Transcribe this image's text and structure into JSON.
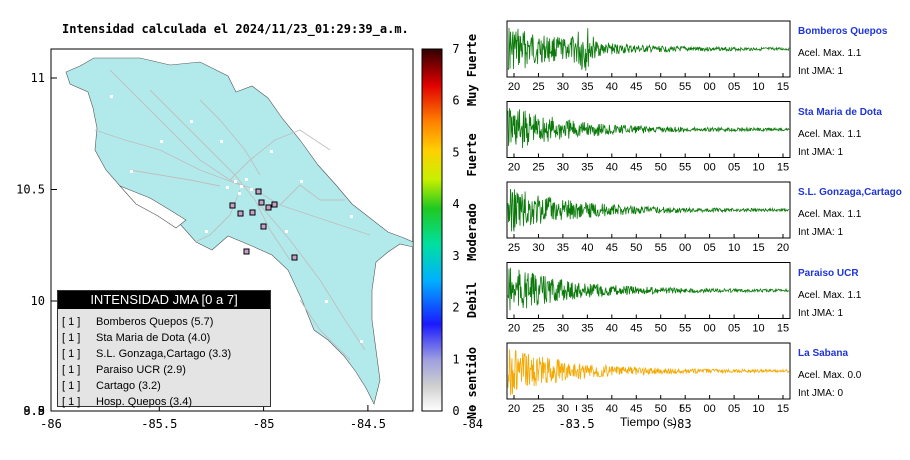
{
  "map": {
    "title": "Intensidad calculada el 2024/11/23_01:29:39_a.m.",
    "x_ticks": [
      "-86",
      "-85.5",
      "-85",
      "-84.5",
      "-84",
      "-83.5",
      "-83"
    ],
    "y_ticks": [
      "11",
      "10.5",
      "10",
      "9.5",
      "9",
      "8.5",
      "8"
    ],
    "colors": {
      "land": "#b2eaec",
      "sea": "#ffffff",
      "roads": "#bfbfbf",
      "stations": "#ffffff"
    }
  },
  "scale": {
    "ticks": [
      "0",
      "1",
      "2",
      "3",
      "4",
      "5",
      "6",
      "7"
    ],
    "labels": [
      "No sentido",
      "Debil",
      "Moderado",
      "Fuerte",
      "Muy Fuerte"
    ]
  },
  "legend": {
    "title": "INTENSIDAD JMA [0 a 7]",
    "items": [
      {
        "bracket": "[ 1 ]",
        "label": "Bomberos Quepos (5.7)"
      },
      {
        "bracket": "[ 1 ]",
        "label": "Sta Maria de Dota (4.0)"
      },
      {
        "bracket": "[ 1 ]",
        "label": "S.L. Gonzaga,Cartago (3.3)"
      },
      {
        "bracket": "[ 1 ]",
        "label": "Paraiso UCR (2.9)"
      },
      {
        "bracket": "[ 1 ]",
        "label": "Cartago (3.2)"
      },
      {
        "bracket": "[ 1 ]",
        "label": "Hosp. Quepos (3.4)"
      }
    ]
  },
  "stations": [
    {
      "name": "Bomberos Quepos",
      "acc": "Acel. Max. 1.1",
      "int": "Int JMA: 1",
      "color": "#0b7a0b",
      "ticks": [
        "20",
        "25",
        "30",
        "35",
        "40",
        "45",
        "50",
        "55",
        "00",
        "05",
        "10",
        "15"
      ],
      "burst": 0.27
    },
    {
      "name": "Sta Maria de Dota",
      "acc": "Acel. Max. 1.1",
      "int": "Int JMA: 1",
      "color": "#0b7a0b",
      "ticks": [
        "20",
        "25",
        "30",
        "35",
        "40",
        "45",
        "50",
        "55",
        "00",
        "05",
        "10",
        "15"
      ],
      "burst": 0.0
    },
    {
      "name": "S.L. Gonzaga,Cartago",
      "acc": "Acel. Max. 1.1",
      "int": "Int JMA: 1",
      "color": "#0b7a0b",
      "ticks": [
        "25",
        "30",
        "35",
        "40",
        "45",
        "50",
        "55",
        "00",
        "05",
        "10",
        "15",
        "20"
      ],
      "burst": 0.0
    },
    {
      "name": "Paraiso UCR",
      "acc": "Acel. Max. 1.1",
      "int": "Int JMA: 1",
      "color": "#0b7a0b",
      "ticks": [
        "20",
        "25",
        "30",
        "35",
        "40",
        "45",
        "50",
        "55",
        "00",
        "05",
        "10",
        "15"
      ],
      "burst": 0.0
    },
    {
      "name": "La Sabana",
      "acc": "Acel. Max. 0.0",
      "int": "Int JMA: 0",
      "color": "#f5a800",
      "ticks": [
        "20",
        "25",
        "30",
        "35",
        "40",
        "45",
        "50",
        "55",
        "00",
        "05",
        "10",
        "15"
      ],
      "burst": 0.0
    }
  ],
  "xlabel": "Tiempo (s)"
}
